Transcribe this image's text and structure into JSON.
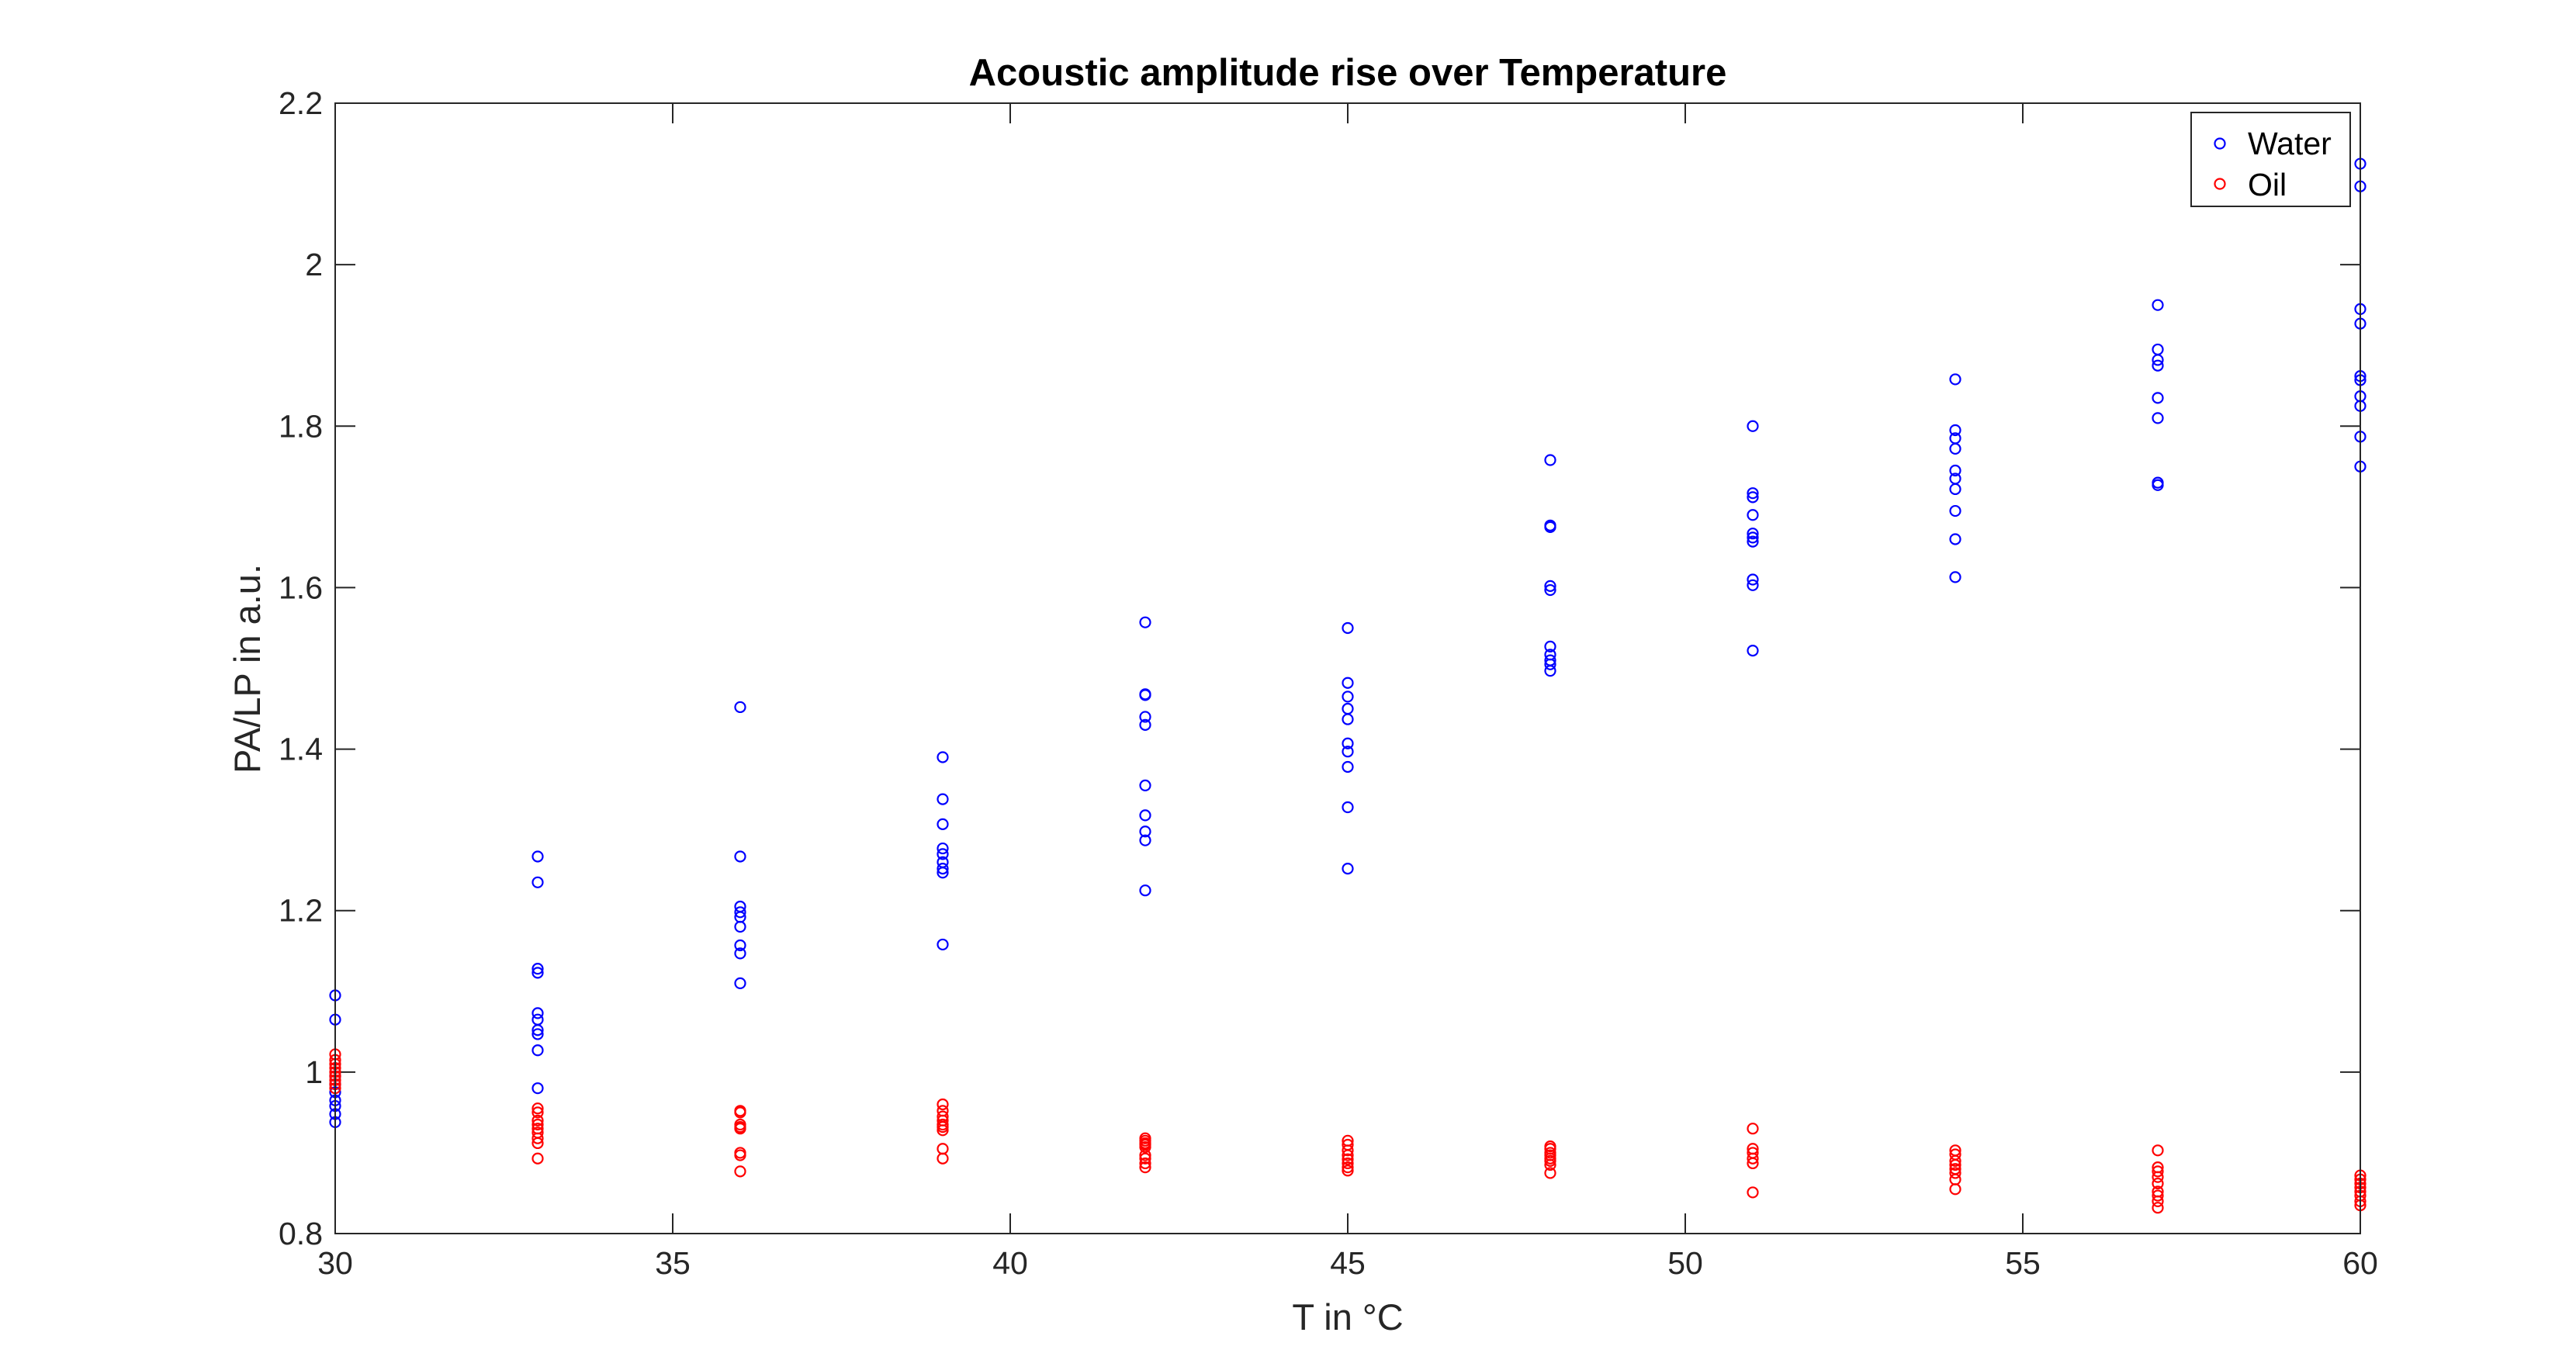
{
  "chart_data": {
    "type": "scatter",
    "title": "Acoustic amplitude rise over Temperature",
    "xlabel": "T in °C",
    "ylabel": "PA/LP in a.u.",
    "xlim": [
      30,
      60
    ],
    "ylim": [
      0.8,
      2.2
    ],
    "xticks": [
      30,
      35,
      40,
      45,
      50,
      55,
      60
    ],
    "yticks": [
      0.8,
      1,
      1.2,
      1.4,
      1.6,
      1.8,
      2,
      2.2
    ],
    "xtick_labels": [
      "30",
      "35",
      "40",
      "45",
      "50",
      "55",
      "60"
    ],
    "ytick_labels": [
      "0.8",
      "1",
      "1.2",
      "1.4",
      "1.6",
      "1.8",
      "2",
      "2.2"
    ],
    "grid": false,
    "box": true,
    "marker": "open-circle",
    "legend": {
      "position": "top-right"
    },
    "series": [
      {
        "name": "Water",
        "color": "#0000ff",
        "points": [
          [
            30,
            1.095
          ],
          [
            30,
            1.065
          ],
          [
            30,
            0.995
          ],
          [
            30,
            0.985
          ],
          [
            30,
            0.975
          ],
          [
            30,
            0.965
          ],
          [
            30,
            0.958
          ],
          [
            30,
            0.948
          ],
          [
            30,
            0.938
          ],
          [
            33,
            1.267
          ],
          [
            33,
            1.235
          ],
          [
            33,
            1.128
          ],
          [
            33,
            1.123
          ],
          [
            33,
            1.073
          ],
          [
            33,
            1.065
          ],
          [
            33,
            1.052
          ],
          [
            33,
            1.047
          ],
          [
            33,
            1.027
          ],
          [
            33,
            0.98
          ],
          [
            36,
            1.452
          ],
          [
            36,
            1.267
          ],
          [
            36,
            1.205
          ],
          [
            36,
            1.198
          ],
          [
            36,
            1.192
          ],
          [
            36,
            1.18
          ],
          [
            36,
            1.157
          ],
          [
            36,
            1.147
          ],
          [
            36,
            1.11
          ],
          [
            39,
            1.39
          ],
          [
            39,
            1.338
          ],
          [
            39,
            1.307
          ],
          [
            39,
            1.277
          ],
          [
            39,
            1.27
          ],
          [
            39,
            1.26
          ],
          [
            39,
            1.252
          ],
          [
            39,
            1.247
          ],
          [
            39,
            1.158
          ],
          [
            42,
            1.557
          ],
          [
            42,
            1.468
          ],
          [
            42,
            1.467
          ],
          [
            42,
            1.44
          ],
          [
            42,
            1.43
          ],
          [
            42,
            1.355
          ],
          [
            42,
            1.318
          ],
          [
            42,
            1.298
          ],
          [
            42,
            1.287
          ],
          [
            42,
            1.225
          ],
          [
            45,
            1.55
          ],
          [
            45,
            1.482
          ],
          [
            45,
            1.465
          ],
          [
            45,
            1.45
          ],
          [
            45,
            1.437
          ],
          [
            45,
            1.407
          ],
          [
            45,
            1.397
          ],
          [
            45,
            1.378
          ],
          [
            45,
            1.328
          ],
          [
            45,
            1.252
          ],
          [
            48,
            1.758
          ],
          [
            48,
            1.677
          ],
          [
            48,
            1.675
          ],
          [
            48,
            1.602
          ],
          [
            48,
            1.597
          ],
          [
            48,
            1.527
          ],
          [
            48,
            1.517
          ],
          [
            48,
            1.51
          ],
          [
            48,
            1.505
          ],
          [
            48,
            1.497
          ],
          [
            51,
            1.8
          ],
          [
            51,
            1.717
          ],
          [
            51,
            1.712
          ],
          [
            51,
            1.69
          ],
          [
            51,
            1.667
          ],
          [
            51,
            1.662
          ],
          [
            51,
            1.657
          ],
          [
            51,
            1.61
          ],
          [
            51,
            1.603
          ],
          [
            51,
            1.522
          ],
          [
            54,
            1.858
          ],
          [
            54,
            1.795
          ],
          [
            54,
            1.785
          ],
          [
            54,
            1.772
          ],
          [
            54,
            1.745
          ],
          [
            54,
            1.735
          ],
          [
            54,
            1.722
          ],
          [
            54,
            1.695
          ],
          [
            54,
            1.66
          ],
          [
            54,
            1.613
          ],
          [
            57,
            1.95
          ],
          [
            57,
            1.895
          ],
          [
            57,
            1.882
          ],
          [
            57,
            1.875
          ],
          [
            57,
            1.835
          ],
          [
            57,
            1.81
          ],
          [
            57,
            1.73
          ],
          [
            57,
            1.727
          ],
          [
            60,
            2.125
          ],
          [
            60,
            2.097
          ],
          [
            60,
            1.945
          ],
          [
            60,
            1.927
          ],
          [
            60,
            1.862
          ],
          [
            60,
            1.857
          ],
          [
            60,
            1.837
          ],
          [
            60,
            1.825
          ],
          [
            60,
            1.787
          ],
          [
            60,
            1.75
          ]
        ]
      },
      {
        "name": "Oil",
        "color": "#ff0000",
        "points": [
          [
            30,
            1.022
          ],
          [
            30,
            1.015
          ],
          [
            30,
            1.01
          ],
          [
            30,
            1.005
          ],
          [
            30,
            1.0
          ],
          [
            30,
            0.995
          ],
          [
            30,
            0.99
          ],
          [
            30,
            0.985
          ],
          [
            30,
            0.98
          ],
          [
            33,
            0.955
          ],
          [
            33,
            0.95
          ],
          [
            33,
            0.94
          ],
          [
            33,
            0.935
          ],
          [
            33,
            0.93
          ],
          [
            33,
            0.925
          ],
          [
            33,
            0.918
          ],
          [
            33,
            0.912
          ],
          [
            33,
            0.893
          ],
          [
            36,
            0.952
          ],
          [
            36,
            0.95
          ],
          [
            36,
            0.935
          ],
          [
            36,
            0.932
          ],
          [
            36,
            0.93
          ],
          [
            36,
            0.9
          ],
          [
            36,
            0.897
          ],
          [
            36,
            0.877
          ],
          [
            39,
            0.96
          ],
          [
            39,
            0.952
          ],
          [
            39,
            0.945
          ],
          [
            39,
            0.94
          ],
          [
            39,
            0.935
          ],
          [
            39,
            0.932
          ],
          [
            39,
            0.928
          ],
          [
            39,
            0.905
          ],
          [
            39,
            0.893
          ],
          [
            42,
            0.918
          ],
          [
            42,
            0.915
          ],
          [
            42,
            0.912
          ],
          [
            42,
            0.91
          ],
          [
            42,
            0.907
          ],
          [
            42,
            0.897
          ],
          [
            42,
            0.893
          ],
          [
            42,
            0.887
          ],
          [
            42,
            0.882
          ],
          [
            45,
            0.915
          ],
          [
            45,
            0.91
          ],
          [
            45,
            0.903
          ],
          [
            45,
            0.897
          ],
          [
            45,
            0.892
          ],
          [
            45,
            0.887
          ],
          [
            45,
            0.882
          ],
          [
            45,
            0.878
          ],
          [
            48,
            0.908
          ],
          [
            48,
            0.905
          ],
          [
            48,
            0.9
          ],
          [
            48,
            0.897
          ],
          [
            48,
            0.893
          ],
          [
            48,
            0.89
          ],
          [
            48,
            0.885
          ],
          [
            48,
            0.875
          ],
          [
            51,
            0.93
          ],
          [
            51,
            0.905
          ],
          [
            51,
            0.9
          ],
          [
            51,
            0.893
          ],
          [
            51,
            0.887
          ],
          [
            51,
            0.851
          ],
          [
            54,
            0.903
          ],
          [
            54,
            0.898
          ],
          [
            54,
            0.89
          ],
          [
            54,
            0.885
          ],
          [
            54,
            0.88
          ],
          [
            54,
            0.875
          ],
          [
            54,
            0.867
          ],
          [
            54,
            0.855
          ],
          [
            57,
            0.903
          ],
          [
            57,
            0.882
          ],
          [
            57,
            0.877
          ],
          [
            57,
            0.87
          ],
          [
            57,
            0.862
          ],
          [
            57,
            0.852
          ],
          [
            57,
            0.847
          ],
          [
            57,
            0.84
          ],
          [
            57,
            0.832
          ],
          [
            60,
            0.872
          ],
          [
            60,
            0.867
          ],
          [
            60,
            0.862
          ],
          [
            60,
            0.857
          ],
          [
            60,
            0.852
          ],
          [
            60,
            0.847
          ],
          [
            60,
            0.84
          ],
          [
            60,
            0.835
          ]
        ]
      }
    ]
  }
}
